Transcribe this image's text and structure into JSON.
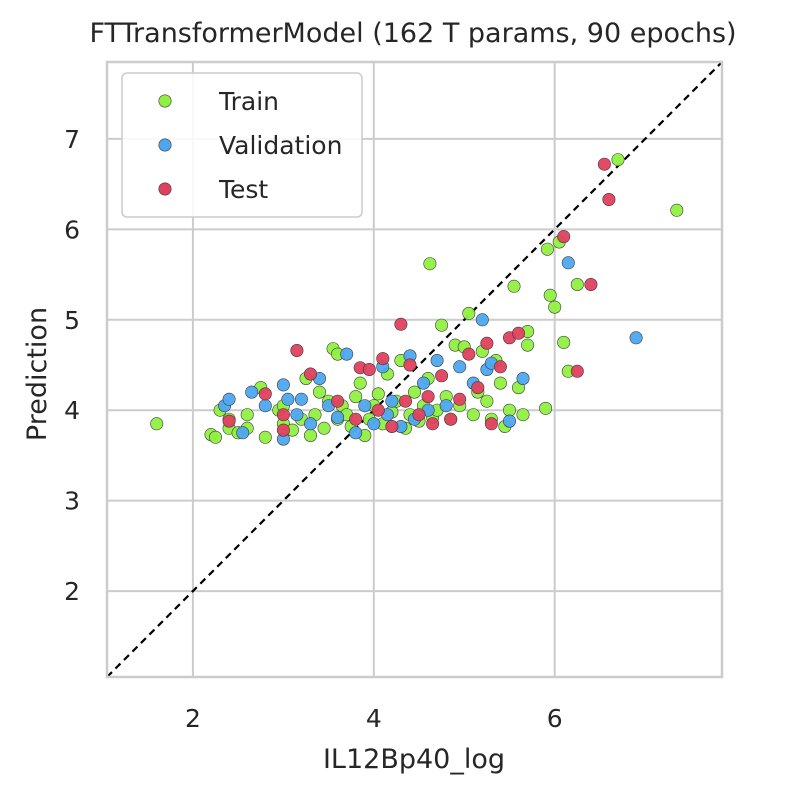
{
  "chart_data": {
    "type": "scatter",
    "title": "FTTransformerModel (162 T params, 90 epochs)",
    "xlabel": "IL12Bp40_log",
    "ylabel": "Prediction",
    "xlim": [
      1.05,
      7.85
    ],
    "ylim": [
      1.05,
      7.85
    ],
    "xticks": [
      2,
      4,
      6
    ],
    "yticks": [
      2,
      3,
      4,
      5,
      6,
      7
    ],
    "grid": true,
    "legend_position": "top-left",
    "identity_line": {
      "style": "dashed",
      "color": "#000000"
    },
    "series": [
      {
        "name": "Train",
        "color": "#90F040",
        "points": [
          [
            1.6,
            3.85
          ],
          [
            2.2,
            3.73
          ],
          [
            2.25,
            3.7
          ],
          [
            2.3,
            4.0
          ],
          [
            2.4,
            3.8
          ],
          [
            2.4,
            3.9
          ],
          [
            2.5,
            3.75
          ],
          [
            2.6,
            3.95
          ],
          [
            2.6,
            3.8
          ],
          [
            2.75,
            4.25
          ],
          [
            2.8,
            3.7
          ],
          [
            2.95,
            4.0
          ],
          [
            3.0,
            3.85
          ],
          [
            3.0,
            4.05
          ],
          [
            3.1,
            3.78
          ],
          [
            3.2,
            3.9
          ],
          [
            3.25,
            4.35
          ],
          [
            3.3,
            3.72
          ],
          [
            3.35,
            3.95
          ],
          [
            3.4,
            4.2
          ],
          [
            3.45,
            3.8
          ],
          [
            3.5,
            4.1
          ],
          [
            3.55,
            4.68
          ],
          [
            3.6,
            4.62
          ],
          [
            3.6,
            3.9
          ],
          [
            3.65,
            4.05
          ],
          [
            3.7,
            3.95
          ],
          [
            3.75,
            3.82
          ],
          [
            3.8,
            4.15
          ],
          [
            3.85,
            4.3
          ],
          [
            3.9,
            3.72
          ],
          [
            3.95,
            3.9
          ],
          [
            4.0,
            4.05
          ],
          [
            4.05,
            4.18
          ],
          [
            4.1,
            3.85
          ],
          [
            4.15,
            4.4
          ],
          [
            4.2,
            3.98
          ],
          [
            4.25,
            4.1
          ],
          [
            4.3,
            4.55
          ],
          [
            4.35,
            3.8
          ],
          [
            4.4,
            3.95
          ],
          [
            4.45,
            4.2
          ],
          [
            4.5,
            3.88
          ],
          [
            4.55,
            4.05
          ],
          [
            4.6,
            4.35
          ],
          [
            4.62,
            5.62
          ],
          [
            4.65,
            3.92
          ],
          [
            4.7,
            4.0
          ],
          [
            4.75,
            4.94
          ],
          [
            4.8,
            4.15
          ],
          [
            4.85,
            3.9
          ],
          [
            4.9,
            4.72
          ],
          [
            4.95,
            4.05
          ],
          [
            5.0,
            4.7
          ],
          [
            5.05,
            5.07
          ],
          [
            5.1,
            3.95
          ],
          [
            5.15,
            4.2
          ],
          [
            5.2,
            4.65
          ],
          [
            5.25,
            4.1
          ],
          [
            5.3,
            3.9
          ],
          [
            5.35,
            4.55
          ],
          [
            5.4,
            4.3
          ],
          [
            5.45,
            3.82
          ],
          [
            5.5,
            4.0
          ],
          [
            5.55,
            5.37
          ],
          [
            5.6,
            4.25
          ],
          [
            5.65,
            3.95
          ],
          [
            5.7,
            4.87
          ],
          [
            5.7,
            4.72
          ],
          [
            5.9,
            4.02
          ],
          [
            5.92,
            5.78
          ],
          [
            5.95,
            5.27
          ],
          [
            6.0,
            5.14
          ],
          [
            6.05,
            5.86
          ],
          [
            6.1,
            4.75
          ],
          [
            6.15,
            4.43
          ],
          [
            6.25,
            5.39
          ],
          [
            6.7,
            6.77
          ],
          [
            7.35,
            6.21
          ]
        ]
      },
      {
        "name": "Validation",
        "color": "#4DA6F0",
        "points": [
          [
            2.35,
            4.05
          ],
          [
            2.4,
            4.12
          ],
          [
            2.55,
            3.75
          ],
          [
            2.65,
            4.2
          ],
          [
            2.8,
            4.05
          ],
          [
            3.0,
            3.68
          ],
          [
            3.0,
            4.28
          ],
          [
            3.05,
            4.12
          ],
          [
            3.15,
            3.95
          ],
          [
            3.2,
            4.12
          ],
          [
            3.3,
            3.85
          ],
          [
            3.4,
            4.35
          ],
          [
            3.5,
            4.05
          ],
          [
            3.6,
            3.92
          ],
          [
            3.7,
            4.62
          ],
          [
            3.8,
            3.75
          ],
          [
            3.9,
            4.05
          ],
          [
            4.0,
            3.85
          ],
          [
            4.1,
            4.48
          ],
          [
            4.15,
            3.95
          ],
          [
            4.2,
            4.1
          ],
          [
            4.3,
            3.82
          ],
          [
            4.4,
            4.6
          ],
          [
            4.45,
            3.9
          ],
          [
            4.55,
            4.3
          ],
          [
            4.6,
            4.0
          ],
          [
            4.7,
            4.55
          ],
          [
            4.8,
            4.05
          ],
          [
            4.95,
            4.48
          ],
          [
            5.1,
            4.3
          ],
          [
            5.2,
            5.0
          ],
          [
            5.25,
            4.45
          ],
          [
            5.3,
            4.52
          ],
          [
            5.5,
            3.88
          ],
          [
            5.65,
            4.35
          ],
          [
            6.15,
            5.63
          ],
          [
            6.9,
            4.8
          ]
        ]
      },
      {
        "name": "Test",
        "color": "#E0405E",
        "points": [
          [
            2.4,
            3.88
          ],
          [
            2.8,
            4.18
          ],
          [
            3.0,
            3.78
          ],
          [
            3.0,
            3.95
          ],
          [
            3.15,
            4.66
          ],
          [
            3.3,
            4.4
          ],
          [
            3.6,
            4.1
          ],
          [
            3.8,
            3.9
          ],
          [
            3.85,
            4.47
          ],
          [
            3.95,
            4.45
          ],
          [
            4.05,
            4.0
          ],
          [
            4.1,
            4.57
          ],
          [
            4.2,
            3.82
          ],
          [
            4.3,
            4.95
          ],
          [
            4.35,
            4.1
          ],
          [
            4.4,
            4.5
          ],
          [
            4.5,
            3.95
          ],
          [
            4.6,
            4.15
          ],
          [
            4.65,
            3.85
          ],
          [
            4.75,
            4.38
          ],
          [
            4.85,
            3.9
          ],
          [
            4.95,
            4.12
          ],
          [
            5.05,
            4.62
          ],
          [
            5.15,
            4.25
          ],
          [
            5.25,
            4.74
          ],
          [
            5.3,
            3.85
          ],
          [
            5.4,
            4.48
          ],
          [
            5.5,
            4.8
          ],
          [
            5.6,
            4.85
          ],
          [
            6.1,
            5.92
          ],
          [
            6.25,
            4.43
          ],
          [
            6.4,
            5.39
          ],
          [
            6.55,
            6.72
          ],
          [
            6.6,
            6.33
          ]
        ]
      }
    ]
  }
}
